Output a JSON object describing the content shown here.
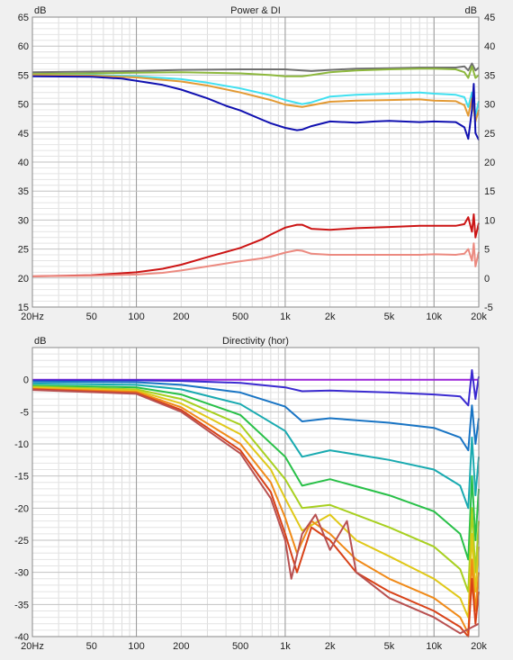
{
  "chart_data": [
    {
      "type": "line",
      "title": "Power & DI",
      "ylabel": "dB",
      "y2label": "dB",
      "xscale": "log",
      "xlim": [
        20,
        20000
      ],
      "ylim": [
        15,
        65
      ],
      "y2lim": [
        -5,
        45
      ],
      "grid": true,
      "xticks": [
        {
          "v": 20,
          "t": "20Hz"
        },
        {
          "v": 50,
          "t": "50"
        },
        {
          "v": 100,
          "t": "100"
        },
        {
          "v": 200,
          "t": "200"
        },
        {
          "v": 500,
          "t": "500"
        },
        {
          "v": 1000,
          "t": "1k"
        },
        {
          "v": 2000,
          "t": "2k"
        },
        {
          "v": 5000,
          "t": "5k"
        },
        {
          "v": 10000,
          "t": "10k"
        },
        {
          "v": 20000,
          "t": "20k"
        }
      ],
      "yticks": [
        {
          "v": 15,
          "t": "15"
        },
        {
          "v": 20,
          "t": "20"
        },
        {
          "v": 25,
          "t": "25"
        },
        {
          "v": 30,
          "t": "30"
        },
        {
          "v": 35,
          "t": "35"
        },
        {
          "v": 40,
          "t": "40"
        },
        {
          "v": 45,
          "t": "45"
        },
        {
          "v": 50,
          "t": "50"
        },
        {
          "v": 55,
          "t": "55"
        },
        {
          "v": 60,
          "t": "60"
        },
        {
          "v": 65,
          "t": "65"
        }
      ],
      "y2ticks": [
        {
          "v": -5,
          "t": "-5"
        },
        {
          "v": 0,
          "t": "0"
        },
        {
          "v": 5,
          "t": "5"
        },
        {
          "v": 10,
          "t": "10"
        },
        {
          "v": 15,
          "t": "15"
        },
        {
          "v": 20,
          "t": "20"
        },
        {
          "v": 25,
          "t": "25"
        },
        {
          "v": 30,
          "t": "30"
        },
        {
          "v": 35,
          "t": "35"
        },
        {
          "v": 40,
          "t": "40"
        },
        {
          "v": 45,
          "t": "45"
        }
      ],
      "series": [
        {
          "color": "#707070",
          "x": [
            20,
            50,
            100,
            200,
            500,
            800,
            1000,
            1300,
            1500,
            2000,
            3000,
            5000,
            8000,
            10000,
            14000,
            16000,
            17000,
            18000,
            19000,
            20000
          ],
          "y": [
            55.5,
            55.6,
            55.7,
            55.9,
            56.0,
            56.0,
            56.0,
            55.8,
            55.7,
            55.9,
            56.1,
            56.2,
            56.3,
            56.3,
            56.3,
            56.5,
            55.8,
            57.0,
            55.8,
            56.3
          ]
        },
        {
          "color": "#8db83d",
          "x": [
            20,
            50,
            100,
            200,
            500,
            800,
            1000,
            1300,
            1500,
            2000,
            3000,
            5000,
            8000,
            10000,
            14000,
            16000,
            17000,
            18000,
            19000,
            20000
          ],
          "y": [
            55.2,
            55.3,
            55.4,
            55.5,
            55.3,
            55.0,
            54.8,
            54.8,
            55.0,
            55.5,
            55.8,
            56.0,
            56.1,
            56.1,
            56.0,
            55.5,
            54.5,
            56.5,
            54.5,
            55.0
          ]
        },
        {
          "color": "#40e0f0",
          "x": [
            20,
            50,
            100,
            200,
            300,
            500,
            800,
            1000,
            1300,
            1500,
            2000,
            3000,
            5000,
            8000,
            10000,
            14000,
            16000,
            17000,
            18000,
            19000,
            20000
          ],
          "y": [
            55.0,
            55.0,
            54.8,
            54.3,
            53.7,
            52.7,
            51.5,
            50.7,
            50.0,
            50.3,
            51.3,
            51.6,
            51.8,
            52.0,
            51.8,
            51.6,
            51.2,
            49.5,
            52.0,
            48.0,
            50.5
          ]
        },
        {
          "color": "#e39a34",
          "x": [
            20,
            50,
            100,
            200,
            300,
            500,
            800,
            1000,
            1300,
            1500,
            2000,
            3000,
            5000,
            8000,
            10000,
            14000,
            16000,
            17000,
            18000,
            19000,
            20000
          ],
          "y": [
            55.0,
            54.9,
            54.6,
            53.9,
            53.2,
            52.0,
            50.7,
            49.9,
            49.5,
            49.8,
            50.4,
            50.6,
            50.7,
            50.8,
            50.6,
            50.5,
            49.8,
            48.0,
            51.0,
            47.0,
            49.0
          ]
        },
        {
          "color": "#1010b0",
          "x": [
            20,
            50,
            80,
            100,
            150,
            200,
            300,
            400,
            500,
            700,
            800,
            1000,
            1200,
            1300,
            1500,
            2000,
            3000,
            4000,
            5000,
            8000,
            10000,
            14000,
            16000,
            17000,
            18000,
            18500,
            19000,
            20000
          ],
          "y": [
            54.8,
            54.7,
            54.4,
            54.0,
            53.3,
            52.5,
            51.0,
            49.7,
            48.9,
            47.3,
            46.7,
            45.9,
            45.5,
            45.6,
            46.2,
            47.0,
            46.8,
            47.0,
            47.1,
            46.9,
            47.0,
            46.9,
            46.0,
            44.0,
            49.0,
            53.5,
            45.0,
            43.8
          ]
        },
        {
          "color": "#cc1414",
          "x": [
            20,
            50,
            100,
            150,
            200,
            300,
            500,
            700,
            800,
            1000,
            1200,
            1300,
            1500,
            2000,
            3000,
            5000,
            8000,
            10000,
            14000,
            16000,
            17000,
            18000,
            18500,
            19000,
            20000
          ],
          "y": [
            20.3,
            20.5,
            21.0,
            21.6,
            22.3,
            23.6,
            25.2,
            26.7,
            27.5,
            28.7,
            29.2,
            29.2,
            28.5,
            28.3,
            28.6,
            28.8,
            29.0,
            29.0,
            29.0,
            29.3,
            30.5,
            28.0,
            31.0,
            27.0,
            29.5
          ]
        },
        {
          "color": "#ec8a80",
          "x": [
            20,
            50,
            100,
            150,
            200,
            300,
            500,
            700,
            800,
            1000,
            1200,
            1300,
            1500,
            2000,
            3000,
            5000,
            8000,
            10000,
            14000,
            16000,
            17000,
            18000,
            18500,
            19000,
            20000
          ],
          "y": [
            20.3,
            20.4,
            20.6,
            20.9,
            21.3,
            22.0,
            22.9,
            23.4,
            23.7,
            24.4,
            24.8,
            24.7,
            24.2,
            24.0,
            24.0,
            24.0,
            24.0,
            24.1,
            24.0,
            24.2,
            25.0,
            23.0,
            26.0,
            22.0,
            24.5
          ]
        }
      ]
    },
    {
      "type": "line",
      "title": "Directivity (hor)",
      "ylabel": "dB",
      "xscale": "log",
      "xlim": [
        20,
        20000
      ],
      "ylim": [
        -40,
        5
      ],
      "grid": true,
      "xticks": [
        {
          "v": 20,
          "t": "20Hz"
        },
        {
          "v": 50,
          "t": "50"
        },
        {
          "v": 100,
          "t": "100"
        },
        {
          "v": 200,
          "t": "200"
        },
        {
          "v": 500,
          "t": "500"
        },
        {
          "v": 1000,
          "t": "1k"
        },
        {
          "v": 2000,
          "t": "2k"
        },
        {
          "v": 5000,
          "t": "5k"
        },
        {
          "v": 10000,
          "t": "10k"
        },
        {
          "v": 20000,
          "t": "20k"
        }
      ],
      "yticks": [
        {
          "v": -40,
          "t": "-40"
        },
        {
          "v": -35,
          "t": "-35"
        },
        {
          "v": -30,
          "t": "-30"
        },
        {
          "v": -25,
          "t": "-25"
        },
        {
          "v": -20,
          "t": "-20"
        },
        {
          "v": -15,
          "t": "-15"
        },
        {
          "v": -10,
          "t": "-10"
        },
        {
          "v": -5,
          "t": "-5"
        },
        {
          "v": 0,
          "t": "0"
        }
      ],
      "series": [
        {
          "color": "#9b24d8",
          "x": [
            20,
            100,
            1000,
            5000,
            10000,
            15000,
            17000,
            18000,
            19000,
            20000
          ],
          "y": [
            0,
            0,
            0,
            0,
            0,
            0,
            0,
            0,
            0,
            0
          ]
        },
        {
          "color": "#3a2ad0",
          "x": [
            20,
            100,
            200,
            500,
            1000,
            1300,
            2000,
            5000,
            10000,
            15000,
            17000,
            18000,
            19000,
            20000
          ],
          "y": [
            -0.1,
            -0.1,
            -0.2,
            -0.5,
            -1.2,
            -1.8,
            -1.7,
            -2.0,
            -2.3,
            -2.6,
            -4.0,
            1.5,
            -3.0,
            0.5
          ]
        },
        {
          "color": "#1874c4",
          "x": [
            20,
            100,
            200,
            500,
            1000,
            1300,
            2000,
            5000,
            10000,
            15000,
            17000,
            18000,
            19000,
            20000
          ],
          "y": [
            -0.3,
            -0.4,
            -0.8,
            -2.0,
            -4.2,
            -6.5,
            -6.0,
            -6.7,
            -7.5,
            -9.0,
            -11.0,
            -4.0,
            -10.0,
            -6.0
          ]
        },
        {
          "color": "#18aab0",
          "x": [
            20,
            100,
            200,
            500,
            1000,
            1300,
            2000,
            5000,
            10000,
            15000,
            17000,
            18000,
            19000,
            20000
          ],
          "y": [
            -0.6,
            -0.8,
            -1.5,
            -3.8,
            -8.0,
            -12.0,
            -11.0,
            -12.5,
            -14.0,
            -16.5,
            -20.0,
            -9.0,
            -18.0,
            -12.0
          ]
        },
        {
          "color": "#28c048",
          "x": [
            20,
            100,
            200,
            500,
            1000,
            1300,
            2000,
            5000,
            10000,
            15000,
            17000,
            18000,
            19000,
            20000
          ],
          "y": [
            -0.9,
            -1.2,
            -2.3,
            -5.5,
            -12.0,
            -16.5,
            -15.5,
            -18.0,
            -20.5,
            -24.0,
            -28.0,
            -15.0,
            -25.0,
            -17.0
          ]
        },
        {
          "color": "#a8d020",
          "x": [
            20,
            100,
            200,
            500,
            1000,
            1300,
            2000,
            5000,
            10000,
            15000,
            17000,
            18000,
            19000,
            20000
          ],
          "y": [
            -1.1,
            -1.5,
            -3.0,
            -7.0,
            -15.5,
            -20.0,
            -19.5,
            -23.0,
            -26.0,
            -29.5,
            -33.0,
            -20.0,
            -30.0,
            -22.0
          ]
        },
        {
          "color": "#e0c818",
          "x": [
            20,
            100,
            200,
            500,
            800,
            1000,
            1300,
            2000,
            3000,
            5000,
            10000,
            15000,
            17000,
            18000,
            19000,
            20000
          ],
          "y": [
            -1.2,
            -1.7,
            -3.7,
            -8.5,
            -14.0,
            -18.5,
            -23.5,
            -21.0,
            -25.0,
            -27.5,
            -31.0,
            -34.0,
            -37.0,
            -24.0,
            -33.0,
            -26.0
          ]
        },
        {
          "color": "#f08a18",
          "x": [
            20,
            100,
            200,
            500,
            800,
            1000,
            1200,
            1500,
            2000,
            3000,
            5000,
            10000,
            15000,
            17000,
            18000,
            19000,
            20000
          ],
          "y": [
            -1.4,
            -1.9,
            -4.3,
            -10.0,
            -16.0,
            -21.5,
            -27.0,
            -22.0,
            -24.0,
            -28.0,
            -31.0,
            -34.0,
            -37.0,
            -39.5,
            -28.0,
            -36.0,
            -30.0
          ]
        },
        {
          "color": "#d84218",
          "x": [
            20,
            100,
            200,
            500,
            800,
            1000,
            1200,
            1500,
            2000,
            3000,
            5000,
            10000,
            15000,
            17000,
            18000,
            19000,
            20000
          ],
          "y": [
            -1.5,
            -2.1,
            -4.7,
            -11.0,
            -17.5,
            -24.0,
            -30.0,
            -23.0,
            -25.0,
            -30.0,
            -33.0,
            -36.0,
            -38.5,
            -40.0,
            -31.0,
            -38.0,
            -33.0
          ]
        },
        {
          "color": "#b85050",
          "x": [
            20,
            100,
            200,
            500,
            800,
            1000,
            1100,
            1300,
            1600,
            2000,
            2600,
            3000,
            5000,
            10000,
            15000,
            20000
          ],
          "y": [
            -1.6,
            -2.2,
            -5.0,
            -11.5,
            -18.5,
            -25.0,
            -31.0,
            -24.0,
            -21.0,
            -26.5,
            -22.0,
            -30.0,
            -34.0,
            -37.0,
            -39.5,
            -38.0
          ]
        }
      ]
    }
  ]
}
